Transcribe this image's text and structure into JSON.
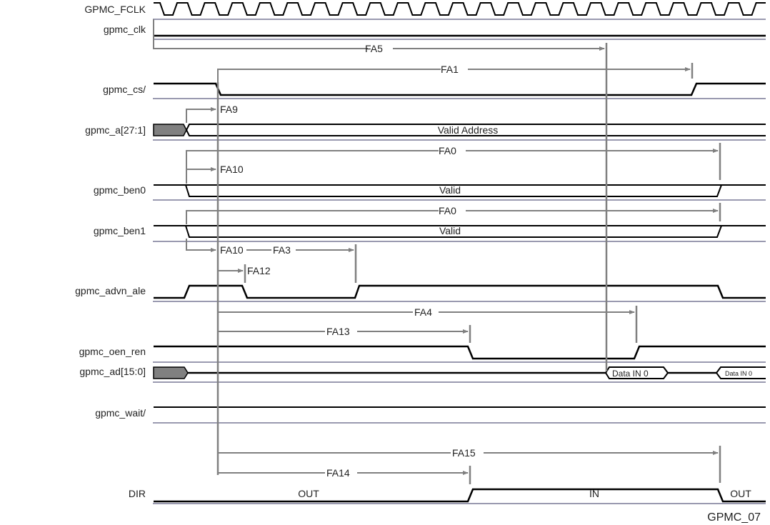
{
  "signals": {
    "fclk": "GPMC_FCLK",
    "clk": "gpmc_clk",
    "cs": "gpmc_cs/",
    "a": "gpmc_a[27:1]",
    "ben0": "gpmc_ben0",
    "ben1": "gpmc_ben1",
    "advn": "gpmc_advn_ale",
    "oen": "gpmc_oen_ren",
    "ad": "gpmc_ad[15:0]",
    "wait": "gpmc_wait/",
    "dir": "DIR"
  },
  "timings": {
    "fa5": "FA5",
    "fa1": "FA1",
    "fa9": "FA9",
    "fa0a": "FA0",
    "fa10a": "FA10",
    "fa0b": "FA0",
    "fa10b": "FA10",
    "fa3": "FA3",
    "fa12": "FA12",
    "fa4": "FA4",
    "fa13": "FA13",
    "fa15": "FA15",
    "fa14": "FA14"
  },
  "bus_values": {
    "address": "Valid Address",
    "ben0": "Valid",
    "ben1": "Valid",
    "data1": "Data IN 0",
    "data2": "Data IN 0",
    "dir_out1": "OUT",
    "dir_in": "IN",
    "dir_out2": "OUT"
  },
  "figure_id": "GPMC_07",
  "colors": {
    "signal": "#000000",
    "timing": "#808080",
    "separator": "#9a9ab0"
  }
}
